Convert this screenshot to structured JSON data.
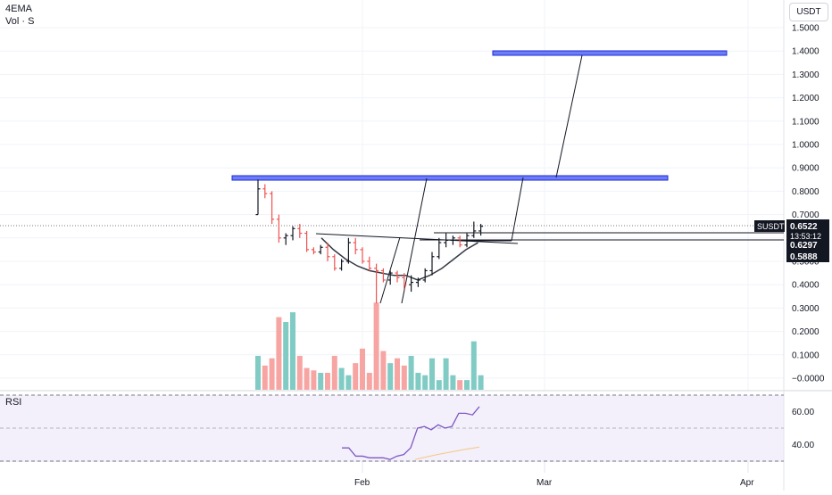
{
  "legend": {
    "indicator": "4EMA",
    "volume": "Vol · S",
    "rsi": "RSI"
  },
  "currency": "USDT",
  "symbol": "SUSDT",
  "price_axis": {
    "ticks": [
      "1.5000",
      "1.4000",
      "1.3000",
      "1.2000",
      "1.1000",
      "1.0000",
      "0.9000",
      "0.8000",
      "0.7000",
      "0.6000",
      "0.5000",
      "0.4000",
      "0.3000",
      "0.2000",
      "0.1000",
      "−0.0000"
    ]
  },
  "rsi_axis": {
    "ticks": [
      "60.00",
      "40.00"
    ]
  },
  "price_labels": {
    "last": "0.6522",
    "countdown": "13:53:12",
    "level1": "0.6297",
    "level2": "0.5888"
  },
  "time_axis": {
    "labels": [
      "Feb",
      "Mar",
      "Apr"
    ]
  },
  "colors": {
    "up": "#26a69a",
    "down": "#ef5350",
    "bar": "#131722",
    "up_vol": "#80cbc4",
    "down_vol": "#f7a5a3",
    "zone_fill": "#6d7cf7",
    "zone_border": "#1a2bd6",
    "rsi_line": "#7e57c2",
    "rsi_ma": "#f5c77e",
    "rsi_band": "#f3f0fb",
    "grid": "#f0f3fa"
  },
  "chart_data": {
    "type": "bar",
    "price_scale": {
      "min": -0.05,
      "max": 1.55
    },
    "rsi_scale": {
      "min": 28,
      "max": 70,
      "levels": [
        70,
        50,
        30
      ]
    },
    "price_bars": [
      {
        "o": 0.7,
        "h": 0.85,
        "l": 0.7,
        "c": 0.81
      },
      {
        "o": 0.81,
        "h": 0.83,
        "l": 0.77,
        "c": 0.79
      },
      {
        "o": 0.79,
        "h": 0.8,
        "l": 0.66,
        "c": 0.68
      },
      {
        "o": 0.68,
        "h": 0.7,
        "l": 0.58,
        "c": 0.6
      },
      {
        "o": 0.6,
        "h": 0.62,
        "l": 0.57,
        "c": 0.61
      },
      {
        "o": 0.61,
        "h": 0.65,
        "l": 0.59,
        "c": 0.64
      },
      {
        "o": 0.64,
        "h": 0.66,
        "l": 0.6,
        "c": 0.62
      },
      {
        "o": 0.62,
        "h": 0.63,
        "l": 0.54,
        "c": 0.55
      },
      {
        "o": 0.55,
        "h": 0.56,
        "l": 0.53,
        "c": 0.54
      },
      {
        "o": 0.54,
        "h": 0.57,
        "l": 0.53,
        "c": 0.56
      },
      {
        "o": 0.56,
        "h": 0.58,
        "l": 0.5,
        "c": 0.52
      },
      {
        "o": 0.52,
        "h": 0.53,
        "l": 0.46,
        "c": 0.47
      },
      {
        "o": 0.47,
        "h": 0.51,
        "l": 0.46,
        "c": 0.5
      },
      {
        "o": 0.5,
        "h": 0.6,
        "l": 0.49,
        "c": 0.58
      },
      {
        "o": 0.58,
        "h": 0.6,
        "l": 0.53,
        "c": 0.55
      },
      {
        "o": 0.55,
        "h": 0.56,
        "l": 0.49,
        "c": 0.5
      },
      {
        "o": 0.5,
        "h": 0.52,
        "l": 0.46,
        "c": 0.47
      },
      {
        "o": 0.47,
        "h": 0.49,
        "l": 0.32,
        "c": 0.46
      },
      {
        "o": 0.46,
        "h": 0.47,
        "l": 0.41,
        "c": 0.42
      },
      {
        "o": 0.42,
        "h": 0.46,
        "l": 0.4,
        "c": 0.45
      },
      {
        "o": 0.45,
        "h": 0.46,
        "l": 0.41,
        "c": 0.43
      },
      {
        "o": 0.43,
        "h": 0.45,
        "l": 0.38,
        "c": 0.4
      },
      {
        "o": 0.4,
        "h": 0.44,
        "l": 0.37,
        "c": 0.41
      },
      {
        "o": 0.41,
        "h": 0.43,
        "l": 0.39,
        "c": 0.42
      },
      {
        "o": 0.42,
        "h": 0.47,
        "l": 0.41,
        "c": 0.46
      },
      {
        "o": 0.46,
        "h": 0.54,
        "l": 0.44,
        "c": 0.52
      },
      {
        "o": 0.52,
        "h": 0.6,
        "l": 0.51,
        "c": 0.58
      },
      {
        "o": 0.58,
        "h": 0.62,
        "l": 0.56,
        "c": 0.59
      },
      {
        "o": 0.59,
        "h": 0.61,
        "l": 0.57,
        "c": 0.6
      },
      {
        "o": 0.6,
        "h": 0.61,
        "l": 0.56,
        "c": 0.57
      },
      {
        "o": 0.57,
        "h": 0.62,
        "l": 0.56,
        "c": 0.61
      },
      {
        "o": 0.61,
        "h": 0.67,
        "l": 0.6,
        "c": 0.63
      },
      {
        "o": 0.63,
        "h": 0.66,
        "l": 0.61,
        "c": 0.65
      }
    ],
    "volume": [
      0.14,
      0.1,
      0.13,
      0.3,
      0.28,
      0.32,
      0.14,
      0.09,
      0.08,
      0.07,
      0.07,
      0.14,
      0.09,
      0.06,
      0.11,
      0.17,
      0.07,
      0.36,
      0.16,
      0.11,
      0.13,
      0.1,
      0.14,
      0.07,
      0.06,
      0.13,
      0.04,
      0.13,
      0.06,
      0.04,
      0.04,
      0.2,
      0.06
    ],
    "ema": [
      0.6,
      0.55,
      0.51,
      0.48,
      0.46,
      0.45,
      0.44,
      0.44,
      0.42,
      0.44,
      0.47,
      0.51,
      0.55,
      0.58
    ],
    "rsi": [
      38,
      38,
      33,
      33,
      32,
      32,
      32,
      31,
      33,
      34,
      38,
      50,
      51,
      49,
      52,
      50,
      51,
      59,
      59,
      58,
      63
    ]
  }
}
